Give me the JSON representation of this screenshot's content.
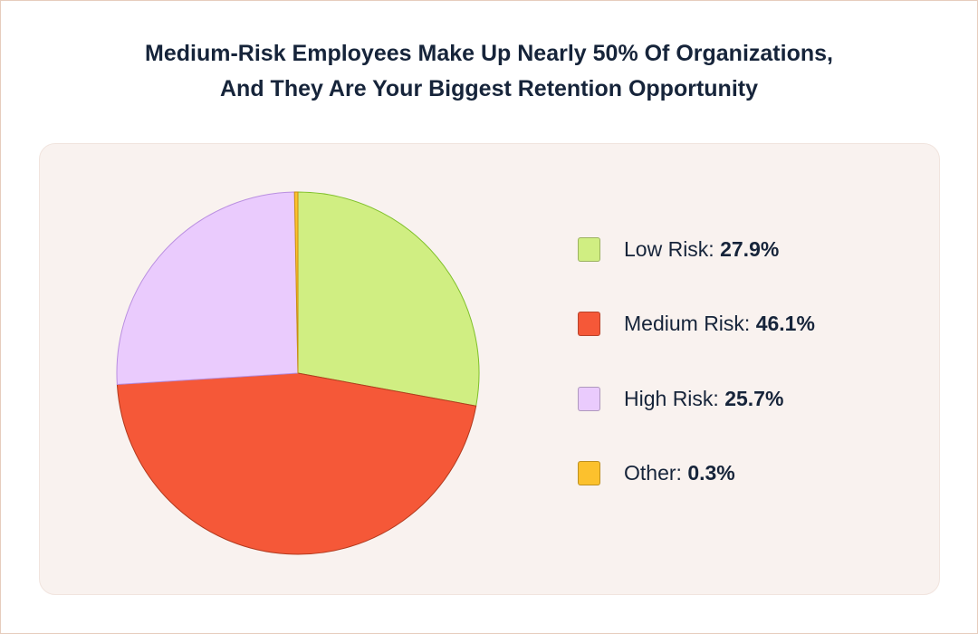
{
  "title_lines": [
    "Medium-Risk Employees Make Up Nearly 50% Of Organizations,",
    "And They Are Your Biggest Retention Opportunity"
  ],
  "legend": [
    {
      "label": "Low Risk:",
      "value": "27.9%"
    },
    {
      "label": "Medium Risk:",
      "value": "46.1%"
    },
    {
      "label": "High Risk:",
      "value": "25.7%"
    },
    {
      "label": "Other:",
      "value": "0.3%"
    }
  ],
  "chart_data": {
    "type": "pie",
    "title": "Medium-Risk Employees Make Up Nearly 50% Of Organizations, And They Are Your Biggest Retention Opportunity",
    "categories": [
      "Low Risk",
      "Medium Risk",
      "High Risk",
      "Other"
    ],
    "values": [
      27.9,
      46.1,
      25.7,
      0.3
    ],
    "colors": [
      "#d0ee82",
      "#f55838",
      "#eacbfd",
      "#fcc12d"
    ],
    "stroke_colors": [
      "#7fc02a",
      "#b23a1e",
      "#b98ee0",
      "#c98f10"
    ],
    "start_angle_deg": 0,
    "direction": "clockwise",
    "legend_position": "right"
  }
}
